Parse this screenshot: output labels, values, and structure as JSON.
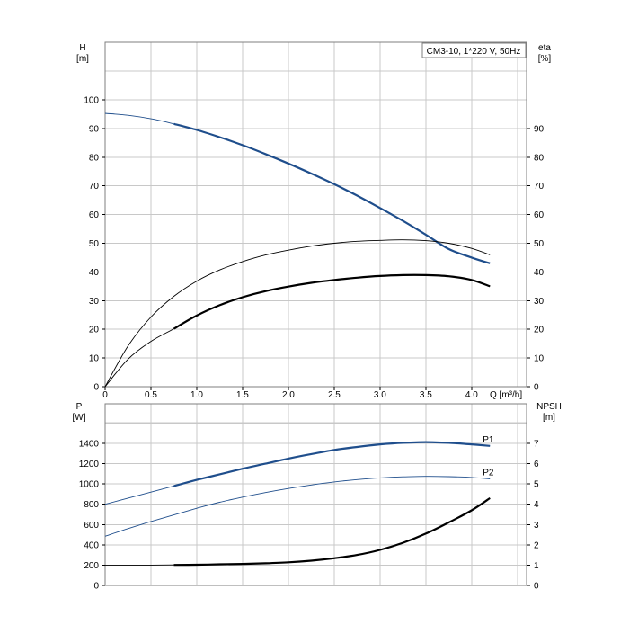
{
  "chart_data": {
    "type": "line",
    "legend_text": "CM3-10, 1*220 V, 50Hz",
    "legend_position": "top-right",
    "grid": true,
    "x_axis": {
      "label": "Q [m³/h]",
      "range": [
        0,
        4.6
      ],
      "ticks": [
        0,
        0.5,
        1.0,
        1.5,
        2.0,
        2.5,
        3.0,
        3.5,
        4.0
      ],
      "tick_labels": [
        "0",
        "0.5",
        "1.0",
        "1.5",
        "2.0",
        "2.5",
        "3.0",
        "3.5",
        "4.0"
      ]
    },
    "upper_panel": {
      "left_axis": {
        "label_line1": "H",
        "label_line2": "[m]",
        "range": [
          0,
          100
        ],
        "ticks": [
          0,
          10,
          20,
          30,
          40,
          50,
          60,
          70,
          80,
          90,
          100
        ],
        "tick_labels": [
          "0",
          "10",
          "20",
          "30",
          "40",
          "50",
          "60",
          "70",
          "80",
          "90",
          "100"
        ]
      },
      "right_axis": {
        "label_line1": "eta",
        "label_line2": "[%]",
        "range": [
          0,
          100
        ],
        "ticks": [
          0,
          10,
          20,
          30,
          40,
          50,
          60,
          70,
          80,
          90
        ],
        "tick_labels": [
          "0",
          "10",
          "20",
          "30",
          "40",
          "50",
          "60",
          "70",
          "80",
          "90"
        ]
      },
      "series": [
        {
          "key": "H",
          "axis": "left",
          "color": "#1f4e8c",
          "x": [
            0,
            0.25,
            0.5,
            0.75,
            1.0,
            1.25,
            1.5,
            1.75,
            2.0,
            2.25,
            2.5,
            2.75,
            3.0,
            3.25,
            3.5,
            3.75,
            4.0,
            4.2
          ],
          "y": [
            95.3,
            94.6,
            93.4,
            91.6,
            89.5,
            87.0,
            84.2,
            81.1,
            77.8,
            74.3,
            70.6,
            66.6,
            62.3,
            57.8,
            53.0,
            48.0,
            45.0,
            43.0
          ],
          "bold_from": 0.75
        },
        {
          "key": "eta-aux",
          "axis": "right",
          "color": "#000000",
          "x": [
            0,
            0.25,
            0.5,
            0.75,
            1.0,
            1.25,
            1.5,
            1.75,
            2.0,
            2.25,
            2.5,
            2.75,
            3.0,
            3.25,
            3.5,
            3.75,
            4.0,
            4.2
          ],
          "y": [
            0,
            14.2,
            24.3,
            31.5,
            36.8,
            40.7,
            43.6,
            45.9,
            47.6,
            49.0,
            50.0,
            50.7,
            51.0,
            51.2,
            50.9,
            50.0,
            48.2,
            46.0
          ],
          "bold_from": null
        },
        {
          "key": "eta",
          "axis": "right",
          "color": "#000000",
          "x": [
            0,
            0.25,
            0.5,
            0.75,
            1.0,
            1.25,
            1.5,
            1.75,
            2.0,
            2.25,
            2.5,
            2.75,
            3.0,
            3.25,
            3.5,
            3.75,
            4.0,
            4.2
          ],
          "y": [
            0,
            9.6,
            15.8,
            20.2,
            24.8,
            28.4,
            31.2,
            33.3,
            34.9,
            36.2,
            37.2,
            38.0,
            38.6,
            38.9,
            38.9,
            38.5,
            37.2,
            35.0
          ],
          "bold_from": 0.75
        }
      ]
    },
    "lower_panel": {
      "left_axis": {
        "label_line1": "P",
        "label_line2": "[W]",
        "range": [
          0,
          1600
        ],
        "ticks": [
          0,
          200,
          400,
          600,
          800,
          1000,
          1200,
          1400
        ],
        "tick_labels": [
          "0",
          "200",
          "400",
          "600",
          "800",
          "1000",
          "1200",
          "1400"
        ]
      },
      "right_axis": {
        "label_line1": "NPSH",
        "label_line2": "[m]",
        "range": [
          0,
          8
        ],
        "ticks": [
          0,
          1,
          2,
          3,
          4,
          5,
          6,
          7
        ],
        "tick_labels": [
          "0",
          "1",
          "2",
          "3",
          "4",
          "5",
          "6",
          "7"
        ]
      },
      "series": [
        {
          "key": "P1",
          "name": "P1",
          "axis": "left",
          "color": "#1f4e8c",
          "x": [
            0,
            0.25,
            0.5,
            0.75,
            1.0,
            1.25,
            1.5,
            1.75,
            2.0,
            2.25,
            2.5,
            2.75,
            3.0,
            3.25,
            3.5,
            3.75,
            4.0,
            4.2
          ],
          "y": [
            800,
            860,
            920,
            980,
            1040,
            1095,
            1150,
            1200,
            1250,
            1295,
            1335,
            1365,
            1390,
            1405,
            1412,
            1405,
            1390,
            1375
          ],
          "bold_from": 0.75
        },
        {
          "key": "P2",
          "name": "P2",
          "axis": "left",
          "color": "#1f4e8c",
          "x": [
            0,
            0.25,
            0.5,
            0.75,
            1.0,
            1.25,
            1.5,
            1.75,
            2.0,
            2.25,
            2.5,
            2.75,
            3.0,
            3.25,
            3.5,
            3.75,
            4.0,
            4.2
          ],
          "y": [
            485,
            560,
            630,
            695,
            760,
            820,
            870,
            915,
            955,
            990,
            1020,
            1043,
            1060,
            1070,
            1075,
            1072,
            1064,
            1050
          ],
          "bold_from": null
        },
        {
          "key": "NPSH",
          "axis": "right",
          "color": "#000000",
          "x": [
            0,
            0.25,
            0.5,
            0.75,
            1.0,
            1.25,
            1.5,
            1.75,
            2.0,
            2.25,
            2.5,
            2.75,
            3.0,
            3.25,
            3.5,
            3.75,
            4.0,
            4.2
          ],
          "y": [
            1.0,
            1.0,
            1.0,
            1.01,
            1.02,
            1.04,
            1.06,
            1.09,
            1.14,
            1.22,
            1.34,
            1.5,
            1.75,
            2.1,
            2.55,
            3.1,
            3.7,
            4.3
          ],
          "bold_from": 0.75
        }
      ]
    }
  }
}
